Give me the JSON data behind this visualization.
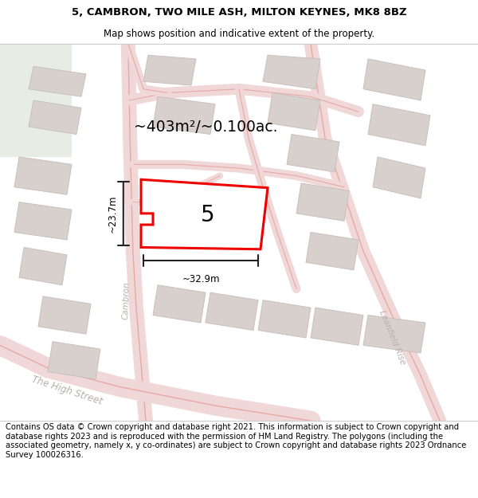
{
  "title": "5, CAMBRON, TWO MILE ASH, MILTON KEYNES, MK8 8BZ",
  "subtitle": "Map shows position and indicative extent of the property.",
  "area_label": "~403m²/~0.100ac.",
  "property_number": "5",
  "dim_width": "~32.9m",
  "dim_height": "~23.7m",
  "footer": "Contains OS data © Crown copyright and database right 2021. This information is subject to Crown copyright and database rights 2023 and is reproduced with the permission of HM Land Registry. The polygons (including the associated geometry, namely x, y co-ordinates) are subject to Crown copyright and database rights 2023 Ordnance Survey 100026316.",
  "bg_color": "#f0ebe8",
  "map_bg_left": "#e8ede8",
  "map_bg": "#f5f0ee",
  "road_color": "#e8a8a8",
  "road_fill": "#f0d8d8",
  "building_color": "#d8d0cc",
  "building_edge": "#c8c0bc",
  "highlight_color": "#ee0000",
  "street_label_color": "#b8b0ac",
  "title_fontsize": 9.5,
  "subtitle_fontsize": 8.5,
  "footer_fontsize": 7.2
}
